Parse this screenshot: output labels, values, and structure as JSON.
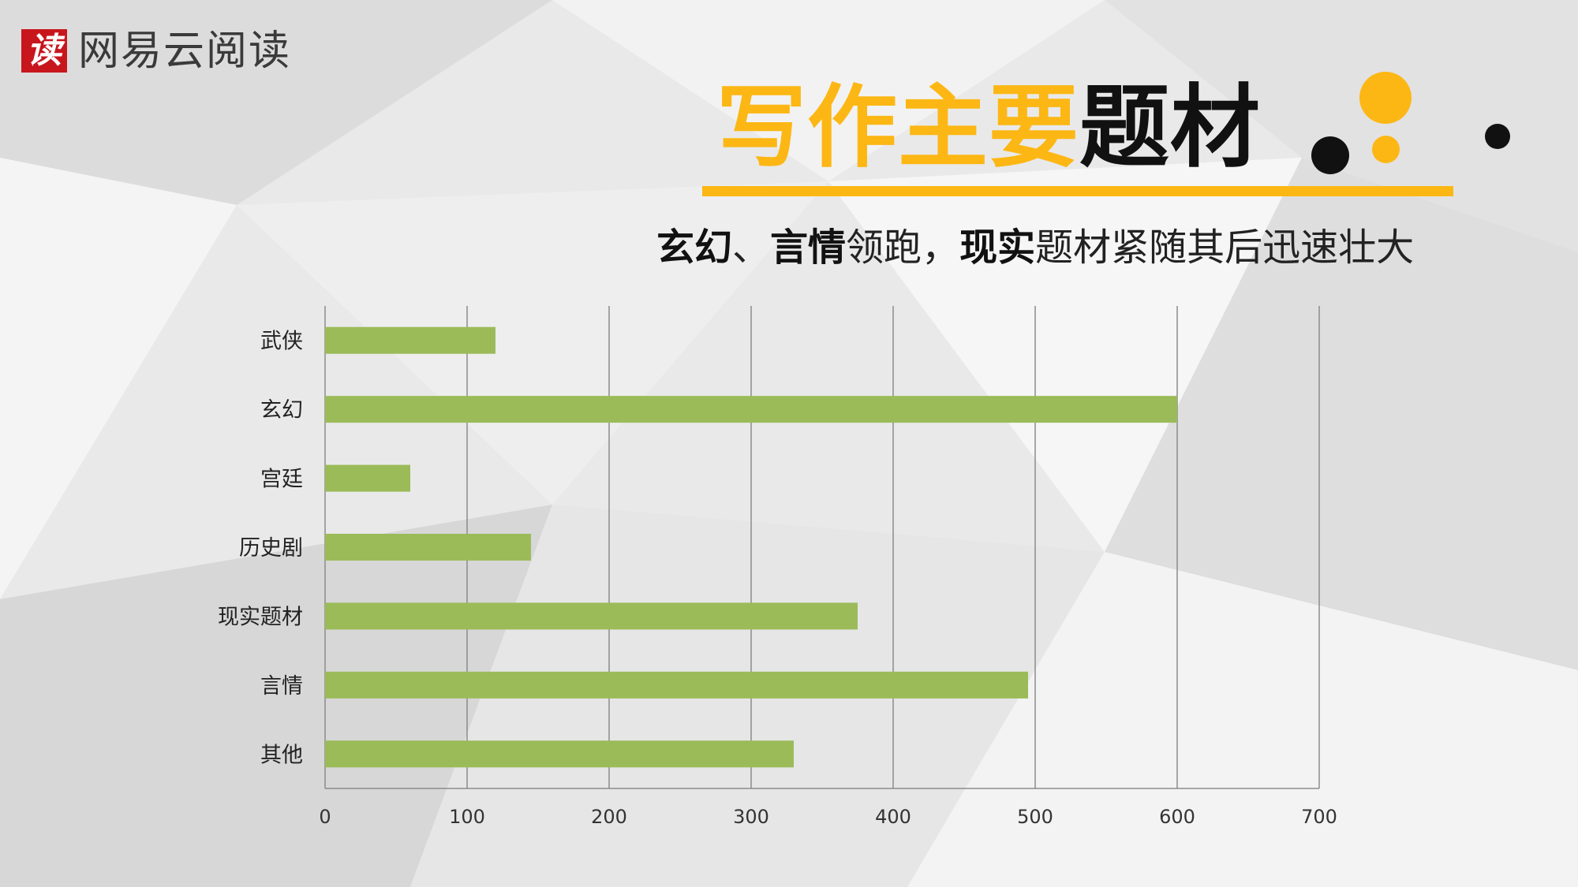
{
  "brand": {
    "mark": "读",
    "name": "网易云阅读"
  },
  "title": {
    "highlight": "写作主要",
    "rest": "题材"
  },
  "subtitle": {
    "part1": "玄幻",
    "part2": "、",
    "part3": "言情",
    "part4": "领跑，",
    "part5": "现实",
    "part6": "题材紧随其后迅速壮大"
  },
  "colors": {
    "accent": "#fcb714",
    "bar": "#9bbb59",
    "dark": "#111111"
  },
  "chart_data": {
    "type": "bar",
    "orientation": "horizontal",
    "categories": [
      "武侠",
      "玄幻",
      "宫廷",
      "历史剧",
      "现实题材",
      "言情",
      "其他"
    ],
    "values": [
      120,
      600,
      60,
      145,
      375,
      495,
      330
    ],
    "xlim": [
      0,
      700
    ],
    "xticks": [
      "0",
      "100",
      "200",
      "300",
      "400",
      "500",
      "600",
      "700"
    ],
    "grid": true,
    "title": "",
    "xlabel": "",
    "ylabel": ""
  }
}
